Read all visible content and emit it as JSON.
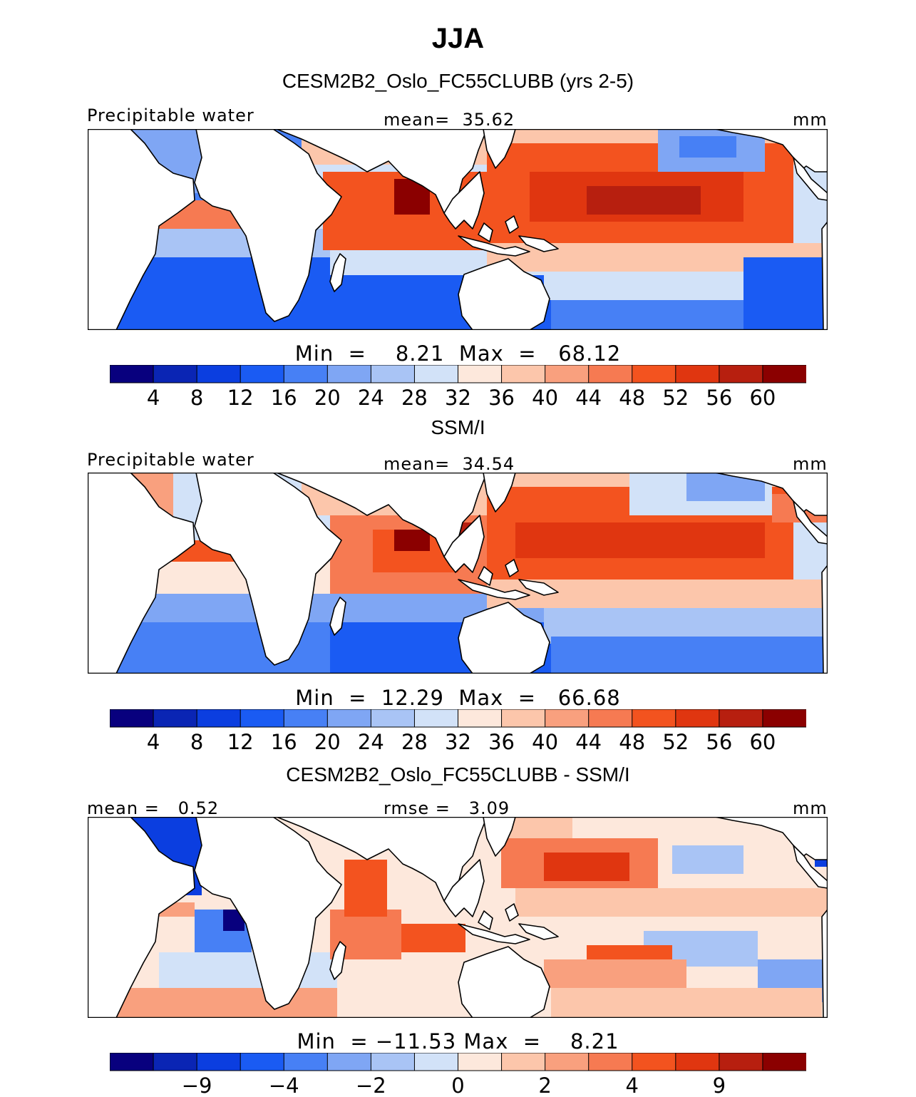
{
  "figure": {
    "season": "JJA",
    "colors": {
      "model_scale": [
        "#08007e",
        "#0a25b4",
        "#0b3ee0",
        "#1a5bf3",
        "#4780f5",
        "#7fa6f4",
        "#a9c4f5",
        "#d2e2f8",
        "#fde8dc",
        "#fcc6ab",
        "#f9a07e",
        "#f67a52",
        "#f3531f",
        "#e03610",
        "#b71f0f",
        "#8b0000"
      ],
      "diff_scale": [
        "#08007e",
        "#0a25b4",
        "#0b3ee0",
        "#1a5bf3",
        "#4780f5",
        "#7fa6f4",
        "#a9c4f5",
        "#d2e2f8",
        "#fde8dc",
        "#fcc6ab",
        "#f9a07e",
        "#f67a52",
        "#f3531f",
        "#e03610",
        "#b71f0f",
        "#8b0000"
      ],
      "land": "#ffffff",
      "coast": "#000000"
    }
  },
  "chart_data": [
    {
      "type": "heatmap",
      "title": "CESM2B2_Oslo_FC55CLUBB (yrs 2-5)",
      "field_label": "Precipitable water",
      "stat_label": "mean=",
      "stat_value": "35.62",
      "units": "mm",
      "min_label": "Min  =",
      "min_value": "8.21",
      "max_label": "Max  =",
      "max_value": "68.12",
      "colorbar_ticks": [
        "4",
        "8",
        "12",
        "16",
        "20",
        "24",
        "28",
        "32",
        "36",
        "40",
        "44",
        "48",
        "52",
        "56",
        "60"
      ],
      "colorbar_levels": [
        4,
        8,
        12,
        16,
        20,
        24,
        28,
        32,
        36,
        40,
        44,
        48,
        52,
        56,
        60
      ]
    },
    {
      "type": "heatmap",
      "title": "SSM/I",
      "field_label": "Precipitable water",
      "stat_label": "mean=",
      "stat_value": "34.54",
      "units": "mm",
      "min_label": "Min  =",
      "min_value": "12.29",
      "max_label": "Max  =",
      "max_value": "66.68",
      "colorbar_ticks": [
        "4",
        "8",
        "12",
        "16",
        "20",
        "24",
        "28",
        "32",
        "36",
        "40",
        "44",
        "48",
        "52",
        "56",
        "60"
      ],
      "colorbar_levels": [
        4,
        8,
        12,
        16,
        20,
        24,
        28,
        32,
        36,
        40,
        44,
        48,
        52,
        56,
        60
      ]
    },
    {
      "type": "heatmap",
      "title": "CESM2B2_Oslo_FC55CLUBB - SSM/I",
      "field_label": "mean =",
      "field_value": "0.52",
      "stat_label": "rmse =",
      "stat_value": "3.09",
      "units": "mm",
      "min_label": "Min  =",
      "min_value": "−11.53",
      "max_label": "Max  =",
      "max_value": "8.21",
      "colorbar_ticks": [
        "−9",
        "−4",
        "−2",
        "0",
        "2",
        "4",
        "9"
      ],
      "colorbar_levels": [
        -9,
        -4,
        -2,
        0,
        2,
        4,
        9
      ]
    }
  ]
}
